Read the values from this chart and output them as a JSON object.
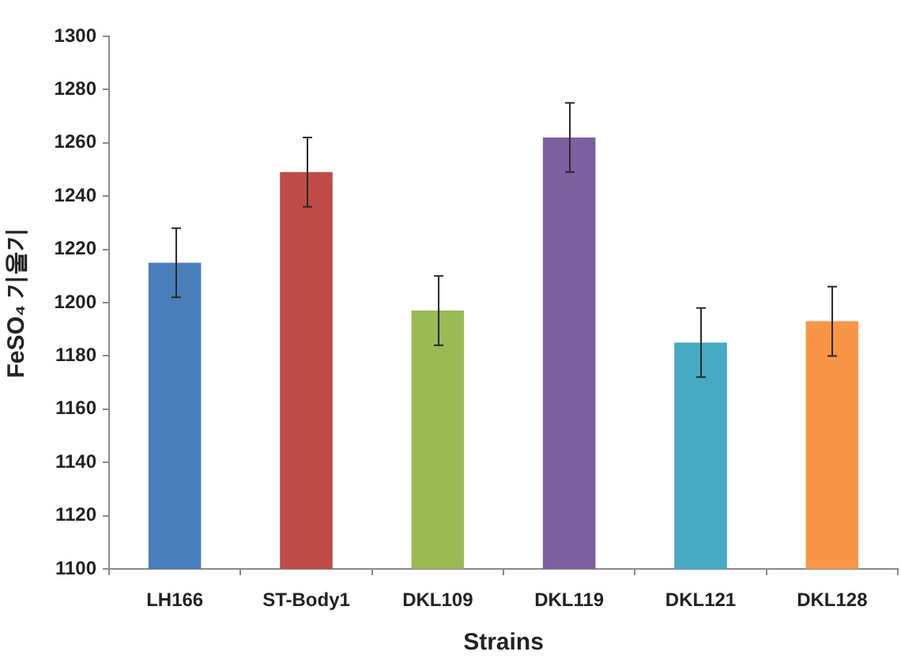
{
  "chart_data": {
    "type": "bar",
    "xlabel": "Strains",
    "ylabel": "FeSO₄ 기울기",
    "categories": [
      "LH166",
      "ST-Body1",
      "DKL109",
      "DKL119",
      "DKL121",
      "DKL128"
    ],
    "values": [
      1215,
      1249,
      1197,
      1262,
      1185,
      1193
    ],
    "colors": [
      "#4a7ebb",
      "#be4b48",
      "#98b954",
      "#7d60a0",
      "#46aac5",
      "#f79646"
    ],
    "errors": [
      13,
      13,
      13,
      13,
      13,
      13
    ],
    "ylim": [
      1100,
      1300
    ],
    "yticks": [
      1100,
      1120,
      1140,
      1160,
      1180,
      1200,
      1220,
      1240,
      1260,
      1280,
      1300
    ],
    "grid": false,
    "legend": false
  }
}
